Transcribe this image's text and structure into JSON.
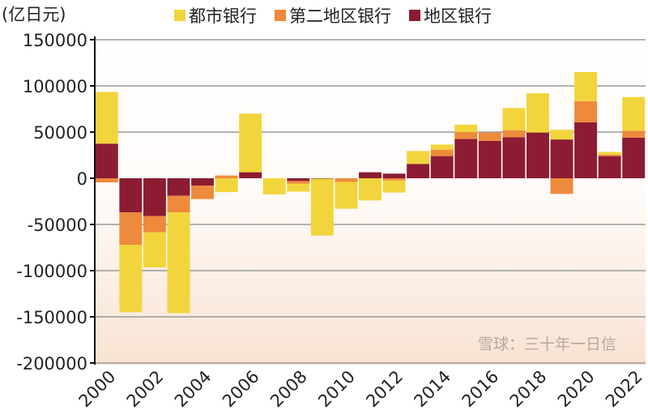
{
  "chart_data": {
    "type": "bar",
    "stacked": true,
    "unit_label": "(亿日元)",
    "categories": [
      "2000",
      "2001",
      "2002",
      "2003",
      "2004",
      "2005",
      "2006",
      "2007",
      "2008",
      "2009",
      "2010",
      "2011",
      "2012",
      "2013",
      "2014",
      "2015",
      "2016",
      "2017",
      "2018",
      "2019",
      "2020",
      "2021",
      "2022"
    ],
    "x_tick_labels": [
      "2000",
      "2002",
      "2004",
      "2006",
      "2008",
      "2010",
      "2012",
      "2014",
      "2016",
      "2018",
      "2020",
      "2022"
    ],
    "series": [
      {
        "name": "地区银行",
        "color": "#8c1c32",
        "values": [
          37500,
          -37000,
          -41000,
          -19000,
          -8000,
          0,
          6500,
          0,
          -3000,
          -500,
          0,
          6500,
          5000,
          15500,
          24000,
          42500,
          40500,
          44500,
          49500,
          42000,
          60500,
          24000,
          44000
        ]
      },
      {
        "name": "第二地区银行",
        "color": "#ee8a3c",
        "values": [
          -4500,
          -35000,
          -17500,
          -18000,
          -14500,
          3000,
          0,
          0,
          -3000,
          0,
          -4000,
          0,
          -2500,
          0,
          7000,
          7500,
          9000,
          7500,
          0,
          -17000,
          23000,
          1500,
          7500
        ]
      },
      {
        "name": "都市银行",
        "color": "#f2d53c",
        "values": [
          56000,
          -73000,
          -38000,
          -109000,
          0,
          -15000,
          63500,
          -17500,
          -8500,
          -61500,
          -29000,
          -24000,
          -13000,
          14000,
          5500,
          8000,
          0,
          24000,
          42500,
          10500,
          31500,
          3000,
          36500
        ]
      }
    ],
    "legend_order": [
      "都市银行",
      "第二地区银行",
      "地区银行"
    ],
    "ylim": [
      -200000,
      150000
    ],
    "y_ticks": [
      "150000",
      "100000",
      "50000",
      "0",
      "-50000",
      "-100000",
      "-150000",
      "-200000"
    ],
    "grid": true,
    "legend_position": "top",
    "watermark": "雪球：三十年一日信"
  }
}
